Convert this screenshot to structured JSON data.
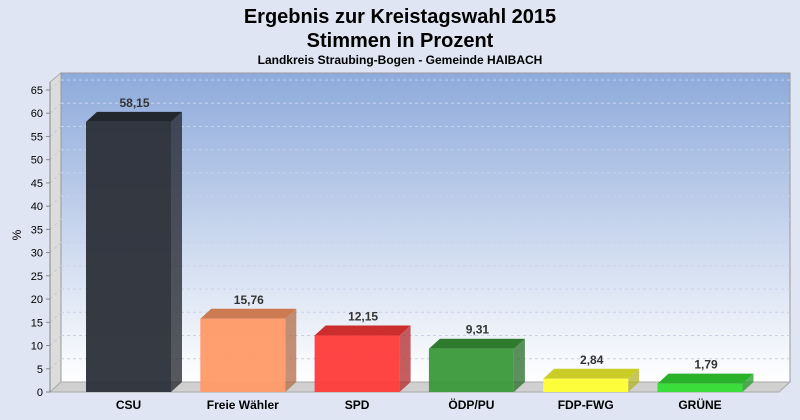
{
  "chart_data": {
    "type": "bar",
    "title": "Ergebnis zur Kreistagswahl 2015",
    "subtitle": "Stimmen in Prozent",
    "subsubtitle": "Landkreis Straubing-Bogen - Gemeinde HAIBACH",
    "xlabel": "",
    "ylabel": "%",
    "ylim": [
      0,
      65
    ],
    "yticks": [
      0,
      5,
      10,
      15,
      20,
      25,
      30,
      35,
      40,
      45,
      50,
      55,
      60,
      65
    ],
    "grid": true,
    "categories": [
      "CSU",
      "Freie Wähler",
      "SPD",
      "ÖDP/PU",
      "FDP-FWG",
      "GRÜNE"
    ],
    "values": [
      58.15,
      15.76,
      12.15,
      9.31,
      2.84,
      1.79
    ],
    "value_labels": [
      "58,15",
      "15,76",
      "12,15",
      "9,31",
      "2,84",
      "1,79"
    ],
    "colors": [
      "#2b2f38",
      "#ff9966",
      "#ff3a3a",
      "#3a9a3a",
      "#ffff33",
      "#33dd33"
    ]
  }
}
